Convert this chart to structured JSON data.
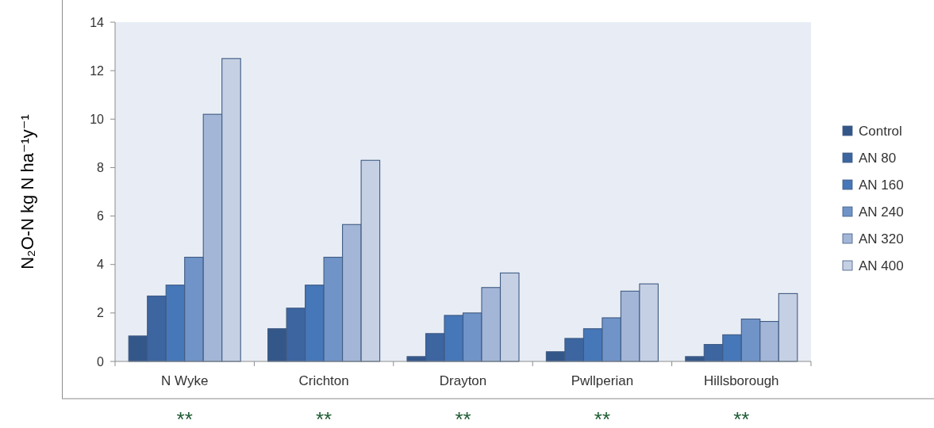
{
  "chart_data": {
    "type": "bar",
    "ylabel": "N₂O-N kg N ha⁻¹y⁻¹",
    "categories": [
      "N Wyke",
      "Crichton",
      "Drayton",
      "Pwllperian",
      "Hillsborough"
    ],
    "series": [
      {
        "name": "Control",
        "color": "#34578a",
        "values": [
          1.05,
          1.35,
          0.2,
          0.4,
          0.2
        ]
      },
      {
        "name": "AN 80",
        "color": "#3d65a0",
        "values": [
          2.7,
          2.2,
          1.15,
          0.95,
          0.7
        ]
      },
      {
        "name": "AN 160",
        "color": "#4677b8",
        "values": [
          3.15,
          3.15,
          1.9,
          1.35,
          1.1
        ]
      },
      {
        "name": "AN 240",
        "color": "#7094c8",
        "values": [
          4.3,
          4.3,
          2.0,
          1.8,
          1.75
        ]
      },
      {
        "name": "AN 320",
        "color": "#a3b6d8",
        "values": [
          10.2,
          5.65,
          3.05,
          2.9,
          1.65
        ]
      },
      {
        "name": "AN 400",
        "color": "#c5d0e4",
        "values": [
          12.5,
          8.3,
          3.65,
          3.2,
          2.8
        ]
      }
    ],
    "ylim": [
      0,
      14
    ],
    "yticks": [
      0,
      2,
      4,
      6,
      8,
      10,
      12,
      14
    ],
    "legend": "right",
    "annotations": [
      "**",
      "**",
      "**",
      "**",
      "**"
    ]
  }
}
